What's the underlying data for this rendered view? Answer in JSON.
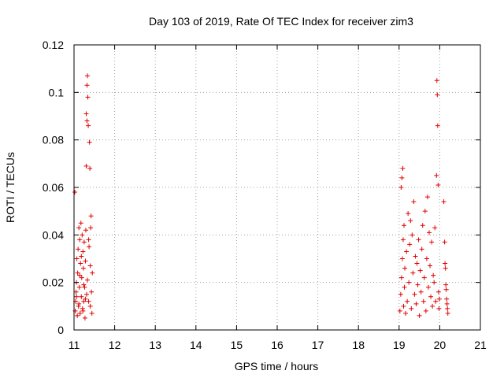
{
  "chart_data": {
    "type": "scatter",
    "title": "Day 103 of 2019, Rate Of TEC Index for receiver zim3",
    "xlabel": "GPS time / hours",
    "ylabel": "ROTI / TECUs",
    "xlim": [
      11,
      21
    ],
    "ylim": [
      0,
      0.12
    ],
    "xticks": [
      "11",
      "12",
      "13",
      "14",
      "15",
      "16",
      "17",
      "18",
      "19",
      "20",
      "21"
    ],
    "yticks": [
      "0",
      "0.02",
      "0.04",
      "0.06",
      "0.08",
      "0.1",
      "0.12"
    ],
    "grid": true,
    "marker": "+",
    "color": "#e00000",
    "series": [
      {
        "name": "ROTI",
        "points": [
          [
            11.02,
            0.058
          ],
          [
            11.03,
            0.008
          ],
          [
            11.04,
            0.012
          ],
          [
            11.05,
            0.016
          ],
          [
            11.06,
            0.02
          ],
          [
            11.07,
            0.03
          ],
          [
            11.08,
            0.006
          ],
          [
            11.09,
            0.024
          ],
          [
            11.1,
            0.034
          ],
          [
            11.11,
            0.01
          ],
          [
            11.12,
            0.043
          ],
          [
            11.13,
            0.018
          ],
          [
            11.14,
            0.038
          ],
          [
            11.15,
            0.007
          ],
          [
            11.16,
            0.028
          ],
          [
            11.17,
            0.045
          ],
          [
            11.18,
            0.014
          ],
          [
            11.19,
            0.022
          ],
          [
            11.2,
            0.04
          ],
          [
            11.21,
            0.009
          ],
          [
            11.22,
            0.033
          ],
          [
            11.23,
            0.026
          ],
          [
            11.24,
            0.012
          ],
          [
            11.25,
            0.037
          ],
          [
            11.26,
            0.018
          ],
          [
            11.27,
            0.005
          ],
          [
            11.28,
            0.029
          ],
          [
            11.29,
            0.042
          ],
          [
            11.3,
            0.069
          ],
          [
            11.3,
            0.091
          ],
          [
            11.31,
            0.015
          ],
          [
            11.32,
            0.103
          ],
          [
            11.32,
            0.088
          ],
          [
            11.33,
            0.107
          ],
          [
            11.33,
            0.021
          ],
          [
            11.34,
            0.098
          ],
          [
            11.35,
            0.086
          ],
          [
            11.36,
            0.012
          ],
          [
            11.37,
            0.035
          ],
          [
            11.38,
            0.079
          ],
          [
            11.39,
            0.068
          ],
          [
            11.4,
            0.027
          ],
          [
            11.41,
            0.043
          ],
          [
            11.42,
            0.048
          ],
          [
            11.43,
            0.016
          ],
          [
            11.44,
            0.007
          ],
          [
            11.45,
            0.024
          ],
          [
            11.12,
            0.011
          ],
          [
            11.18,
            0.031
          ],
          [
            11.24,
            0.019
          ],
          [
            11.28,
            0.013
          ],
          [
            11.36,
            0.038
          ],
          [
            11.4,
            0.01
          ],
          [
            11.22,
            0.008
          ],
          [
            11.06,
            0.014
          ],
          [
            11.14,
            0.023
          ],
          [
            19.02,
            0.008
          ],
          [
            19.04,
            0.015
          ],
          [
            19.05,
            0.06
          ],
          [
            19.06,
            0.022
          ],
          [
            19.07,
            0.064
          ],
          [
            19.08,
            0.03
          ],
          [
            19.09,
            0.068
          ],
          [
            19.1,
            0.038
          ],
          [
            19.11,
            0.01
          ],
          [
            19.12,
            0.044
          ],
          [
            19.13,
            0.018
          ],
          [
            19.14,
            0.026
          ],
          [
            19.16,
            0.007
          ],
          [
            19.18,
            0.033
          ],
          [
            19.2,
            0.012
          ],
          [
            19.22,
            0.049
          ],
          [
            19.24,
            0.02
          ],
          [
            19.26,
            0.036
          ],
          [
            19.28,
            0.046
          ],
          [
            19.3,
            0.009
          ],
          [
            19.32,
            0.04
          ],
          [
            19.34,
            0.024
          ],
          [
            19.36,
            0.054
          ],
          [
            19.38,
            0.015
          ],
          [
            19.4,
            0.031
          ],
          [
            19.42,
            0.011
          ],
          [
            19.44,
            0.028
          ],
          [
            19.46,
            0.019
          ],
          [
            19.48,
            0.038
          ],
          [
            19.5,
            0.006
          ],
          [
            19.52,
            0.025
          ],
          [
            19.54,
            0.016
          ],
          [
            19.56,
            0.034
          ],
          [
            19.58,
            0.044
          ],
          [
            19.6,
            0.012
          ],
          [
            19.62,
            0.022
          ],
          [
            19.64,
            0.05
          ],
          [
            19.66,
            0.008
          ],
          [
            19.68,
            0.03
          ],
          [
            19.7,
            0.056
          ],
          [
            19.72,
            0.018
          ],
          [
            19.74,
            0.041
          ],
          [
            19.76,
            0.027
          ],
          [
            19.78,
            0.014
          ],
          [
            19.8,
            0.037
          ],
          [
            19.82,
            0.01
          ],
          [
            19.84,
            0.023
          ],
          [
            19.86,
            0.02
          ],
          [
            19.88,
            0.043
          ],
          [
            19.9,
            0.012
          ],
          [
            19.92,
            0.065
          ],
          [
            19.93,
            0.105
          ],
          [
            19.94,
            0.099
          ],
          [
            19.95,
            0.086
          ],
          [
            19.96,
            0.061
          ],
          [
            19.97,
            0.016
          ],
          [
            19.98,
            0.009
          ],
          [
            19.99,
            0.013
          ],
          [
            20.1,
            0.054
          ],
          [
            20.12,
            0.037
          ],
          [
            20.13,
            0.028
          ],
          [
            20.14,
            0.026
          ],
          [
            20.15,
            0.019
          ],
          [
            20.16,
            0.017
          ],
          [
            20.17,
            0.013
          ],
          [
            20.18,
            0.011
          ],
          [
            20.19,
            0.009
          ],
          [
            20.2,
            0.007
          ]
        ]
      }
    ]
  }
}
